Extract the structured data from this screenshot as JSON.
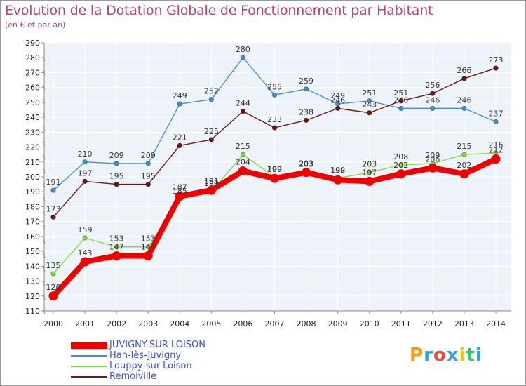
{
  "title": "Evolution de la Dotation Globale de Fonctionnement par Habitant",
  "subtitle": "(en € et par an)",
  "logo": {
    "letters": [
      "P",
      "r",
      "o",
      "x",
      "i",
      "t",
      "i"
    ],
    "colors": [
      "#f39c12",
      "#3aa0d8",
      "#e74c3c",
      "#3aa0d8",
      "#f1c40f",
      "#2ecc71",
      "#3aa0d8"
    ]
  },
  "chart_data": {
    "type": "line",
    "title": "Evolution de la Dotation Globale de Fonctionnement par Habitant",
    "subtitle": "(en € et par an)",
    "xlabel": "",
    "ylabel": "",
    "ylim": [
      110,
      290
    ],
    "yticks": [
      110,
      120,
      130,
      140,
      150,
      160,
      170,
      180,
      190,
      200,
      210,
      220,
      230,
      240,
      250,
      260,
      270,
      280,
      290
    ],
    "x": [
      "2000",
      "2001",
      "2002",
      "2003",
      "2004",
      "2005",
      "2006",
      "2007",
      "2008",
      "2009",
      "2010",
      "2011",
      "2012",
      "2013",
      "2014"
    ],
    "grid": true,
    "legend_position": "bottom-left",
    "series": [
      {
        "name": "Han-lès-Juvigny",
        "color": "#4a90c8",
        "values": [
          191,
          210,
          209,
          209,
          249,
          252,
          280,
          255,
          259,
          249,
          251,
          246,
          246,
          246,
          237
        ],
        "labels": [
          "191",
          "210",
          "209",
          "209",
          "249",
          "252",
          "280",
          "255",
          "259",
          "249",
          "251",
          "246",
          "246",
          "246",
          "237"
        ]
      },
      {
        "name": "Remoiville",
        "color": "#6b1a1a",
        "values": [
          173,
          197,
          195,
          195,
          221,
          225,
          244,
          233,
          238,
          246,
          243,
          251,
          256,
          266,
          273
        ],
        "labels": [
          "173",
          "197",
          "195",
          "195",
          "221",
          "225",
          "244",
          "233",
          "238",
          "246",
          "243",
          "251",
          "256",
          "266",
          "273"
        ]
      },
      {
        "name": "Louppy-sur-Loison",
        "color": "#8ed64a",
        "values": [
          135,
          159,
          153,
          153,
          185,
          190,
          215,
          200,
          203,
          199,
          203,
          208,
          209,
          215,
          216
        ],
        "labels": [
          "135",
          "159",
          "153",
          "153",
          "185",
          "190",
          "215",
          "200",
          "203",
          "199",
          "203",
          "208",
          "209",
          "215",
          "216"
        ]
      },
      {
        "name": "JUVIGNY-SUR-LOISON",
        "color": "#ee0000",
        "values": [
          120,
          143,
          147,
          147,
          187,
          191,
          204,
          199,
          203,
          198,
          197,
          202,
          206,
          202,
          212
        ],
        "labels": [
          "120",
          "143",
          "147",
          "147",
          "187",
          "191",
          "204",
          "199",
          "203",
          "198",
          "197",
          "202",
          "206",
          "202",
          "212"
        ]
      }
    ],
    "legend_order": [
      "JUVIGNY-SUR-LOISON",
      "Han-lès-Juvigny",
      "Louppy-sur-Loison",
      "Remoiville"
    ]
  }
}
